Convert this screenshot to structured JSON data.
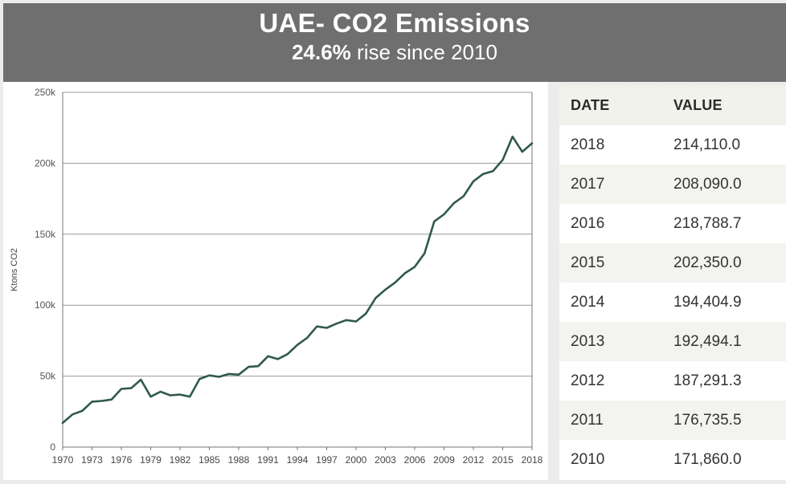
{
  "header": {
    "title": "UAE- CO2 Emissions",
    "subtitle_bold": "24.6%",
    "subtitle_rest": " rise since 2010"
  },
  "colors": {
    "banner": "#6f6f6f",
    "line": "#2f5a4a"
  },
  "chart_data": {
    "type": "line",
    "title": "UAE- CO2 Emissions",
    "xlabel": "",
    "ylabel": "Ktons CO2",
    "ylim": [
      0,
      250000
    ],
    "yticks": [
      0,
      50000,
      100000,
      150000,
      200000,
      250000
    ],
    "ytick_labels": [
      "0",
      "50k",
      "100k",
      "150k",
      "200k",
      "250k"
    ],
    "xtick_labels": [
      "1970",
      "1973",
      "1976",
      "1979",
      "1982",
      "1985",
      "1988",
      "1991",
      "1994",
      "1997",
      "2000",
      "2003",
      "2006",
      "2009",
      "2012",
      "2015",
      "2018"
    ],
    "grid": true,
    "series": [
      {
        "name": "Ktons CO2",
        "x": [
          1970,
          1971,
          1972,
          1973,
          1974,
          1975,
          1976,
          1977,
          1978,
          1979,
          1980,
          1981,
          1982,
          1983,
          1984,
          1985,
          1986,
          1987,
          1988,
          1989,
          1990,
          1991,
          1992,
          1993,
          1994,
          1995,
          1996,
          1997,
          1998,
          1999,
          2000,
          2001,
          2002,
          2003,
          2004,
          2005,
          2006,
          2007,
          2008,
          2009,
          2010,
          2011,
          2012,
          2013,
          2014,
          2015,
          2016,
          2017,
          2018
        ],
        "values": [
          17000,
          23000,
          25500,
          32000,
          32500,
          33500,
          41000,
          41500,
          47500,
          35500,
          39000,
          36500,
          37000,
          35500,
          48000,
          50500,
          49500,
          51500,
          51000,
          56500,
          57000,
          64000,
          62000,
          65500,
          72000,
          77000,
          85000,
          84000,
          87000,
          89500,
          88500,
          94000,
          105000,
          111000,
          116000,
          122500,
          127000,
          136500,
          159000,
          164000,
          171860,
          176735.5,
          187291.3,
          192494.1,
          194404.9,
          202350,
          218788.7,
          208090,
          214110
        ]
      }
    ]
  },
  "table": {
    "columns": [
      "DATE",
      "VALUE"
    ],
    "rows": [
      [
        "2018",
        "214,110.0"
      ],
      [
        "2017",
        "208,090.0"
      ],
      [
        "2016",
        "218,788.7"
      ],
      [
        "2015",
        "202,350.0"
      ],
      [
        "2014",
        "194,404.9"
      ],
      [
        "2013",
        "192,494.1"
      ],
      [
        "2012",
        "187,291.3"
      ],
      [
        "2011",
        "176,735.5"
      ],
      [
        "2010",
        "171,860.0"
      ]
    ]
  }
}
